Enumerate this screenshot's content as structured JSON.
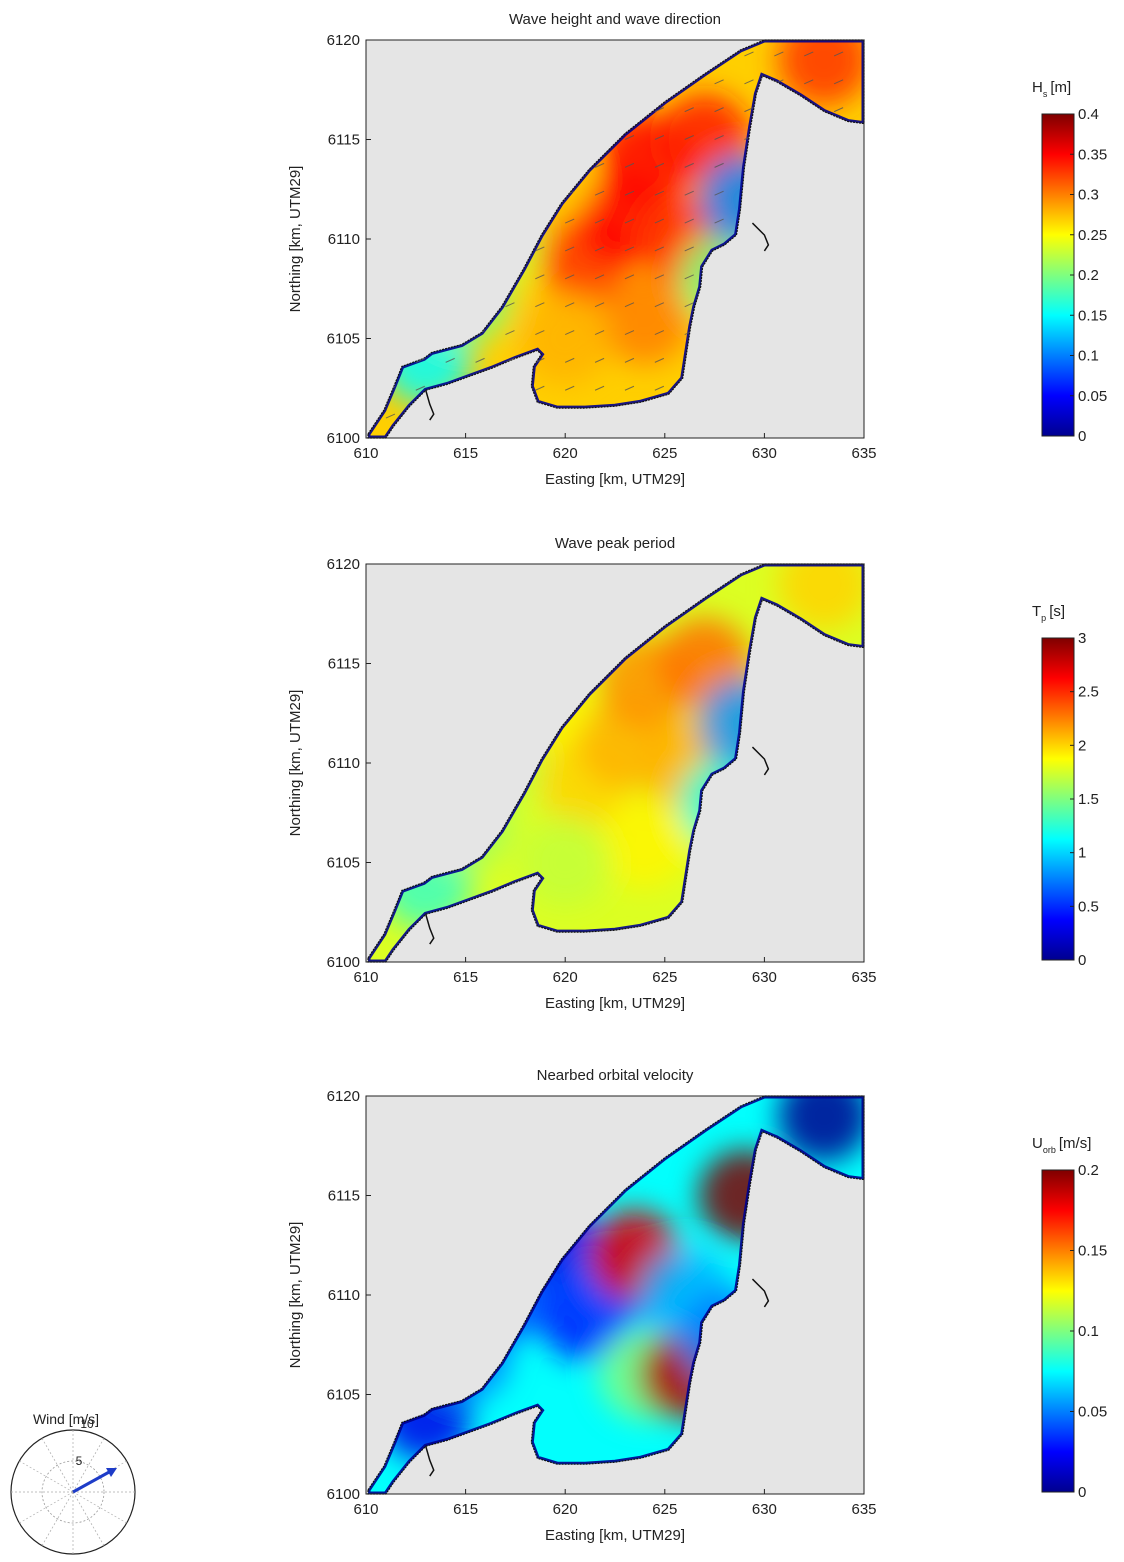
{
  "panels": [
    {
      "title": "Wave height and wave direction",
      "xlabel": "Easting [km, UTM29]",
      "ylabel": "Northing [km, UTM29]",
      "cb_main": "H",
      "cb_sub": "s",
      "cb_unit": "[m]",
      "cb_ticks": [
        "0",
        "0.05",
        "0.1",
        "0.15",
        "0.2",
        "0.25",
        "0.3",
        "0.35",
        "0.4"
      ]
    },
    {
      "title": "Wave peak period",
      "xlabel": "Easting [km, UTM29]",
      "ylabel": "Northing [km, UTM29]",
      "cb_main": "T",
      "cb_sub": "p",
      "cb_unit": "[s]",
      "cb_ticks": [
        "0",
        "0.5",
        "1",
        "1.5",
        "2",
        "2.5",
        "3"
      ]
    },
    {
      "title": "Nearbed orbital velocity",
      "xlabel": "Easting [km, UTM29]",
      "ylabel": "Northing [km, UTM29]",
      "cb_main": "U",
      "cb_sub": "orb",
      "cb_unit": "[m/s]",
      "cb_ticks": [
        "0",
        "0.05",
        "0.1",
        "0.15",
        "0.2"
      ]
    }
  ],
  "x_ticks": [
    "610",
    "615",
    "620",
    "625",
    "630",
    "635"
  ],
  "y_ticks": [
    "6100",
    "6105",
    "6110",
    "6115",
    "6120"
  ],
  "wind": {
    "title": "Wind [m/s]",
    "ring_labels": [
      "5",
      "10"
    ]
  },
  "colors": {
    "land": "#e5e5e5",
    "axis": "#222222",
    "arrow": "#555555",
    "wind_arrow": "#1e3cc8",
    "jet": [
      "#00008f",
      "#0000ff",
      "#007fff",
      "#00ffff",
      "#7fff7f",
      "#ffff00",
      "#ff7f00",
      "#ff0000",
      "#7f0000"
    ]
  },
  "chart_data": [
    {
      "type": "heatmap",
      "title": "Wave height and wave direction",
      "xlabel": "Easting [km, UTM29]",
      "ylabel": "Northing [km, UTM29]",
      "xlim": [
        610,
        635
      ],
      "ylim": [
        6100,
        6120
      ],
      "colorbar": {
        "label": "Hs [m]",
        "range": [
          0,
          0.4
        ]
      },
      "vectors": "wave direction arrows pointing north-east",
      "values": [
        {
          "x": 613,
          "y": 6104,
          "v": 0.15
        },
        {
          "x": 615,
          "y": 6107,
          "v": 0.2
        },
        {
          "x": 617,
          "y": 6110,
          "v": 0.23
        },
        {
          "x": 619,
          "y": 6113,
          "v": 0.27
        },
        {
          "x": 621,
          "y": 6109,
          "v": 0.33
        },
        {
          "x": 623,
          "y": 6111,
          "v": 0.35
        },
        {
          "x": 624,
          "y": 6114,
          "v": 0.35
        },
        {
          "x": 626,
          "y": 6110,
          "v": 0.33
        },
        {
          "x": 627,
          "y": 6115,
          "v": 0.34
        },
        {
          "x": 624,
          "y": 6106,
          "v": 0.3
        },
        {
          "x": 620,
          "y": 6105,
          "v": 0.28
        },
        {
          "x": 628,
          "y": 6108,
          "v": 0.2
        },
        {
          "x": 629,
          "y": 6112,
          "v": 0.1
        },
        {
          "x": 633,
          "y": 6119,
          "v": 0.33
        }
      ]
    },
    {
      "type": "heatmap",
      "title": "Wave peak period",
      "xlabel": "Easting [km, UTM29]",
      "ylabel": "Northing [km, UTM29]",
      "xlim": [
        610,
        635
      ],
      "ylim": [
        6100,
        6120
      ],
      "colorbar": {
        "label": "Tp [s]",
        "range": [
          0,
          3
        ]
      },
      "values": [
        {
          "x": 613,
          "y": 6104,
          "v": 1.3
        },
        {
          "x": 615,
          "y": 6107,
          "v": 1.6
        },
        {
          "x": 617,
          "y": 6110,
          "v": 1.7
        },
        {
          "x": 619,
          "y": 6113,
          "v": 1.9
        },
        {
          "x": 621,
          "y": 6109,
          "v": 2.0
        },
        {
          "x": 623,
          "y": 6111,
          "v": 2.1
        },
        {
          "x": 624,
          "y": 6114,
          "v": 2.2
        },
        {
          "x": 626,
          "y": 6110,
          "v": 2.1
        },
        {
          "x": 627,
          "y": 6115,
          "v": 2.3
        },
        {
          "x": 624,
          "y": 6106,
          "v": 1.9
        },
        {
          "x": 620,
          "y": 6105,
          "v": 1.7
        },
        {
          "x": 628,
          "y": 6108,
          "v": 1.2
        },
        {
          "x": 629,
          "y": 6112,
          "v": 0.8
        },
        {
          "x": 633,
          "y": 6119,
          "v": 2.0
        }
      ]
    },
    {
      "type": "heatmap",
      "title": "Nearbed orbital velocity",
      "xlabel": "Easting [km, UTM29]",
      "ylabel": "Northing [km, UTM29]",
      "xlim": [
        610,
        635
      ],
      "ylim": [
        6100,
        6120
      ],
      "colorbar": {
        "label": "Uorb [m/s]",
        "range": [
          0,
          0.2
        ]
      },
      "values": [
        {
          "x": 613,
          "y": 6104,
          "v": 0.02
        },
        {
          "x": 615,
          "y": 6107,
          "v": 0.05
        },
        {
          "x": 617,
          "y": 6110,
          "v": 0.04
        },
        {
          "x": 619,
          "y": 6113,
          "v": 0.02
        },
        {
          "x": 621,
          "y": 6109,
          "v": 0.03
        },
        {
          "x": 623,
          "y": 6111,
          "v": 0.04
        },
        {
          "x": 623.5,
          "y": 6112,
          "v": 0.18
        },
        {
          "x": 624,
          "y": 6106,
          "v": 0.1
        },
        {
          "x": 626,
          "y": 6106,
          "v": 0.19
        },
        {
          "x": 626,
          "y": 6110,
          "v": 0.06
        },
        {
          "x": 629,
          "y": 6115,
          "v": 0.2
        },
        {
          "x": 628,
          "y": 6108,
          "v": 0.05
        },
        {
          "x": 633,
          "y": 6119,
          "v": 0.0
        }
      ]
    }
  ]
}
